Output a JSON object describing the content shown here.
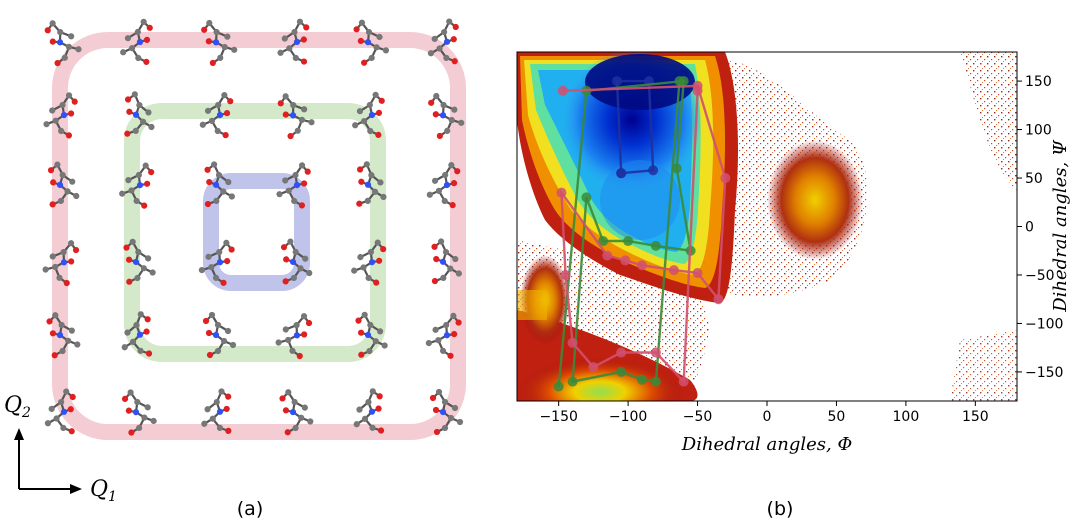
{
  "panel_a": {
    "caption": "(a)",
    "axis_q2_letter": "Q",
    "axis_q2_subscript": "2",
    "axis_q1_letter": "Q",
    "axis_q1_subscript": "1",
    "grid_rows": 6,
    "grid_cols": 6,
    "shells": [
      {
        "name": "inner",
        "color": "#7f7fcf"
      },
      {
        "name": "middle",
        "color": "#9fcf8f"
      },
      {
        "name": "outer",
        "color": "#f0b8c0"
      }
    ],
    "atom_colors": {
      "carbon": "#777777",
      "nitrogen": "#3050f8",
      "oxygen": "#e02020"
    }
  },
  "panel_b": {
    "caption": "(b)",
    "chart_data": {
      "type": "heatmap",
      "xlabel": "Dihedral angles, Φ",
      "ylabel": "Dihedral angles, Ψ",
      "xlim": [
        -180,
        180
      ],
      "ylim": [
        -180,
        180
      ],
      "xticks": [
        "−150",
        "−100",
        "−50",
        "0",
        "50",
        "100",
        "150"
      ],
      "yticks": [
        "150",
        "100",
        "50",
        "0",
        "−50",
        "−100",
        "−150"
      ],
      "colormap": "jet",
      "paths": [
        {
          "color": "#2030a0",
          "points": [
            [
              -105,
              55
            ],
            [
              -108,
              150
            ],
            [
              -85,
              150
            ],
            [
              -82,
              58
            ],
            [
              -105,
              55
            ]
          ]
        },
        {
          "color": "#3a8a3a",
          "points": [
            [
              -150,
              -165
            ],
            [
              -130,
              140
            ],
            [
              -60,
              150
            ],
            [
              -65,
              60
            ],
            [
              -55,
              -25
            ],
            [
              -80,
              -20
            ],
            [
              -100,
              -15
            ],
            [
              -118,
              -15
            ],
            [
              -130,
              30
            ],
            [
              -140,
              -160
            ],
            [
              -105,
              -150
            ],
            [
              -90,
              -158
            ],
            [
              -80,
              -160
            ],
            [
              -63,
              150
            ]
          ]
        },
        {
          "color": "#d05070",
          "points": [
            [
              -147,
              140
            ],
            [
              -50,
              145
            ],
            [
              -30,
              50
            ],
            [
              -35,
              -75
            ],
            [
              -50,
              -48
            ],
            [
              -67,
              -45
            ],
            [
              -90,
              -40
            ],
            [
              -102,
              -35
            ],
            [
              -115,
              -30
            ],
            [
              -148,
              35
            ],
            [
              -145,
              -50
            ],
            [
              -140,
              -120
            ],
            [
              -125,
              -145
            ],
            [
              -105,
              -130
            ],
            [
              -80,
              -130
            ],
            [
              -60,
              -160
            ],
            [
              -50,
              140
            ]
          ]
        }
      ]
    }
  }
}
